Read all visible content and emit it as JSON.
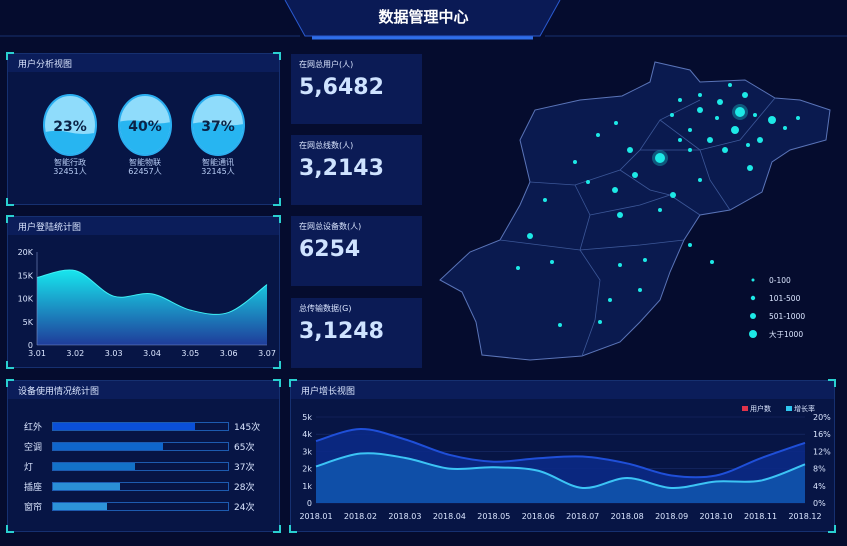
{
  "header": {
    "title": "数据管理中心"
  },
  "user_analysis": {
    "title": "用户分析视图",
    "items": [
      {
        "percent": "23%",
        "fill": 0.23,
        "name": "智能行政",
        "count": "32451人"
      },
      {
        "percent": "40%",
        "fill": 0.4,
        "name": "智能物联",
        "count": "62457人"
      },
      {
        "percent": "37%",
        "fill": 0.37,
        "name": "智能通讯",
        "count": "32145人"
      }
    ]
  },
  "stats": [
    {
      "label": "在网总用户(人)",
      "value": "5,6482"
    },
    {
      "label": "在网总线数(人)",
      "value": "3,2143"
    },
    {
      "label": "在网总设备数(人)",
      "value": "6254"
    },
    {
      "label": "总传输数据(G)",
      "value": "3,1248"
    }
  ],
  "map": {
    "legend": [
      {
        "label": "0-100"
      },
      {
        "label": "101-500"
      },
      {
        "label": "501-1000"
      },
      {
        "label": "大于1000"
      }
    ],
    "dot_color": "#1de9e6"
  },
  "device_usage": {
    "title": "设备使用情况统计图",
    "items": [
      {
        "label": "红外",
        "value": "145次",
        "fill": 0.81,
        "color": "#0a4fd8"
      },
      {
        "label": "空调",
        "value": "65次",
        "fill": 0.63,
        "color": "#0f66cc"
      },
      {
        "label": "灯",
        "value": "37次",
        "fill": 0.47,
        "color": "#1372c8"
      },
      {
        "label": "插座",
        "value": "28次",
        "fill": 0.38,
        "color": "#2a8fd6"
      },
      {
        "label": "窗帘",
        "value": "24次",
        "fill": 0.31,
        "color": "#2d93d8"
      }
    ]
  },
  "chart_data": [
    {
      "type": "area",
      "title": "用户登陆统计图",
      "categories": [
        "3.01",
        "3.02",
        "3.03",
        "3.04",
        "3.05",
        "3.06",
        "3.07"
      ],
      "values": [
        14500,
        16000,
        10500,
        11000,
        7500,
        7000,
        13000
      ],
      "ylim": [
        0,
        20000
      ],
      "yticks": [
        "0",
        "5K",
        "10K",
        "15K",
        "20K"
      ],
      "grid": false
    },
    {
      "type": "area",
      "title": "用户增长视图",
      "categories": [
        "2018.01",
        "2018.02",
        "2018.03",
        "2018.04",
        "2018.05",
        "2018.06",
        "2018.07",
        "2018.08",
        "2018.09",
        "2018.10",
        "2018.11",
        "2018.12"
      ],
      "series": [
        {
          "name": "用户数",
          "axis": "left",
          "values": [
            3600,
            4300,
            3700,
            2800,
            2400,
            2600,
            2700,
            2300,
            1600,
            1600,
            2600,
            3500
          ],
          "legend_color": "#e0334a",
          "line_color": "#1f4fd8"
        },
        {
          "name": "增长率",
          "axis": "right",
          "values": [
            8.5,
            11.5,
            10.5,
            8,
            8.3,
            7.5,
            3.5,
            5.8,
            3.5,
            5,
            5.2,
            9
          ],
          "legend_color": "#2ec6f0",
          "line_color": "#3cc4f5"
        }
      ],
      "ylim": [
        0,
        5000
      ],
      "ylim_right": [
        0,
        20
      ],
      "yticks": [
        "0",
        "1k",
        "2k",
        "3k",
        "4k",
        "5k"
      ],
      "yticks_right": [
        "0%",
        "4%",
        "8%",
        "12%",
        "16%",
        "20%"
      ],
      "legend": "top-right",
      "grid": true
    }
  ]
}
